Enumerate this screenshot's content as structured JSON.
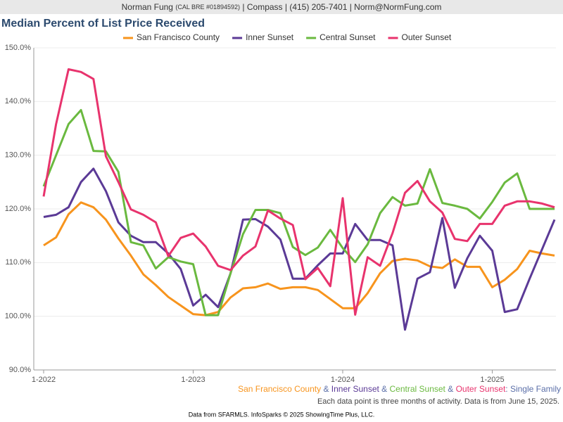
{
  "header": {
    "name": "Norman Fung",
    "license": "(CAL BRE #01894592)",
    "contact": "| Compass | (415) 205-7401 | Norm@NormFung.com"
  },
  "chart_data": {
    "type": "line",
    "title": "Median Percent of List Price Received",
    "categories": [
      "1-2022",
      null,
      null,
      null,
      null,
      null,
      null,
      null,
      null,
      null,
      null,
      null,
      "1-2023",
      null,
      null,
      null,
      null,
      null,
      null,
      null,
      null,
      null,
      null,
      null,
      "1-2024",
      null,
      null,
      null,
      null,
      null,
      null,
      null,
      null,
      null,
      null,
      null,
      "1-2025",
      null,
      null,
      null,
      null,
      null
    ],
    "series": [
      {
        "name": "San Francisco County",
        "color": "#f7941d",
        "values": [
          113.2,
          114.7,
          119,
          121.2,
          120.3,
          118,
          114.5,
          111.3,
          107.8,
          105.8,
          103.6,
          102,
          100.4,
          100.2,
          100.8,
          103.5,
          105.2,
          105.4,
          106.1,
          105.1,
          105.4,
          105.4,
          104.9,
          103.2,
          101.5,
          101.5,
          104.3,
          108,
          110.3,
          110.7,
          110.4,
          109.3,
          109,
          110.6,
          109.2,
          109.2,
          105.4,
          106.8,
          108.8,
          112.2,
          111.7,
          111.3
        ]
      },
      {
        "name": "Inner Sunset",
        "color": "#5b3a96",
        "values": [
          118.5,
          118.9,
          120.3,
          125,
          127.5,
          123.3,
          117.5,
          115,
          113.8,
          113.8,
          111.7,
          108.8,
          102,
          104,
          101.7,
          108,
          118,
          118.1,
          116.7,
          114.3,
          107,
          107,
          109.5,
          111.7,
          111.7,
          117.2,
          114.2,
          114.2,
          113.2,
          97.5,
          107,
          108.2,
          118.3,
          105.3,
          110.8,
          115,
          112.2,
          100.8,
          101.3,
          107,
          112.5,
          118
        ]
      },
      {
        "name": "Central Sunset",
        "color": "#6ab93f",
        "values": [
          124.2,
          130,
          135.8,
          138.4,
          130.8,
          130.7,
          126.9,
          113.8,
          113.2,
          108.9,
          111,
          110.2,
          109.7,
          100.2,
          100.2,
          108,
          115.3,
          119.8,
          119.8,
          119.2,
          112.9,
          111.4,
          112.8,
          116.1,
          112.7,
          110.1,
          113.4,
          119.2,
          122.2,
          120.6,
          121,
          127.4,
          121.1,
          120.6,
          120,
          118.2,
          121.3,
          124.9,
          126.6,
          120,
          120,
          120
        ]
      },
      {
        "name": "Outer Sunset",
        "color": "#e8336d",
        "values": [
          122.3,
          135.8,
          146,
          145.5,
          144.2,
          129.8,
          125,
          119.9,
          118.9,
          117.5,
          111.2,
          114.6,
          115.4,
          113,
          109.4,
          108.6,
          111.3,
          113,
          119.7,
          118.2,
          117,
          106.9,
          109,
          105.6,
          122,
          100.3,
          111,
          109.4,
          115.5,
          123,
          125.2,
          121.4,
          119.3,
          114.4,
          114,
          117.2,
          117.2,
          120.6,
          121.4,
          121.4,
          121,
          120.3
        ]
      }
    ],
    "ylim": [
      90,
      150
    ],
    "yticks": [
      {
        "value": 90,
        "label": "90.0%"
      },
      {
        "value": 100,
        "label": "100.0%"
      },
      {
        "value": 110,
        "label": "110.0%"
      },
      {
        "value": 120,
        "label": "120.0%"
      },
      {
        "value": 130,
        "label": "130.0%"
      },
      {
        "value": 140,
        "label": "140.0%"
      },
      {
        "value": 150,
        "label": "150.0%"
      }
    ],
    "grid": true,
    "legend": "top",
    "caption_separator": "&",
    "caption_suffix": ": Single Family",
    "footnote": "Each data point is three months of activity. Data is from June 15, 2025.",
    "source": "Data from SFARMLS. InfoSparks © 2025 ShowingTime Plus, LLC."
  }
}
